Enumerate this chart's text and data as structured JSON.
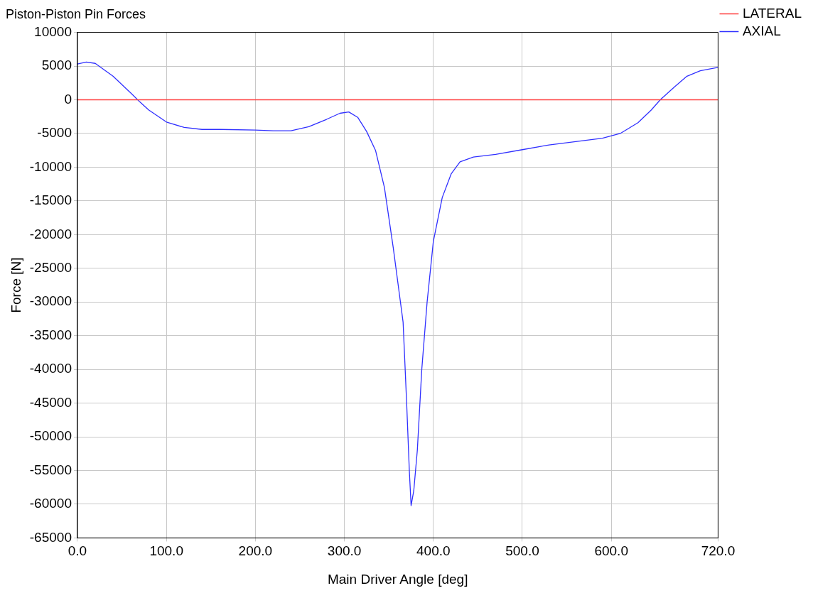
{
  "chart_data": {
    "type": "line",
    "title": "Piston-Piston Pin Forces",
    "xlabel": "Main Driver Angle [deg]",
    "ylabel": "Force [N]",
    "xlim": [
      0,
      720
    ],
    "xticks": [
      {
        "value": 0,
        "label": "0.0"
      },
      {
        "value": 100,
        "label": "100.0"
      },
      {
        "value": 200,
        "label": "200.0"
      },
      {
        "value": 300,
        "label": "300.0"
      },
      {
        "value": 400,
        "label": "400.0"
      },
      {
        "value": 500,
        "label": "500.0"
      },
      {
        "value": 600,
        "label": "600.0"
      },
      {
        "value": 720,
        "label": "720.0"
      }
    ],
    "ylim": [
      -65000,
      10000
    ],
    "yticks": [
      -65000,
      -60000,
      -55000,
      -50000,
      -45000,
      -40000,
      -35000,
      -30000,
      -25000,
      -20000,
      -15000,
      -10000,
      -5000,
      0,
      5000,
      10000
    ],
    "grid": true,
    "legend": "top right",
    "marker": "none",
    "line_style": "solid",
    "series": [
      {
        "name": "LATERAL",
        "color": "#ff4040",
        "x": [
          0,
          720
        ],
        "values": [
          0,
          0
        ]
      },
      {
        "name": "AXIAL",
        "color": "#3030ff",
        "x": [
          0,
          10,
          20,
          40,
          60,
          70,
          80,
          100,
          120,
          140,
          160,
          200,
          220,
          240,
          260,
          280,
          295,
          305,
          315,
          325,
          335,
          345,
          355,
          362,
          366,
          370,
          373,
          375,
          378,
          382,
          387,
          393,
          400,
          410,
          420,
          430,
          445,
          470,
          500,
          530,
          560,
          590,
          610,
          630,
          645,
          655,
          670,
          685,
          700,
          720
        ],
        "values": [
          5300,
          5600,
          5400,
          3500,
          1000,
          -300,
          -1500,
          -3300,
          -4100,
          -4400,
          -4400,
          -4500,
          -4600,
          -4600,
          -4000,
          -2900,
          -2000,
          -1800,
          -2600,
          -4700,
          -7500,
          -13000,
          -22000,
          -29000,
          -33000,
          -45000,
          -55000,
          -60200,
          -58000,
          -52000,
          -40000,
          -30000,
          -21000,
          -14500,
          -11000,
          -9200,
          -8500,
          -8100,
          -7400,
          -6700,
          -6200,
          -5700,
          -5000,
          -3400,
          -1500,
          0,
          1800,
          3500,
          4300,
          4800
        ]
      }
    ]
  }
}
